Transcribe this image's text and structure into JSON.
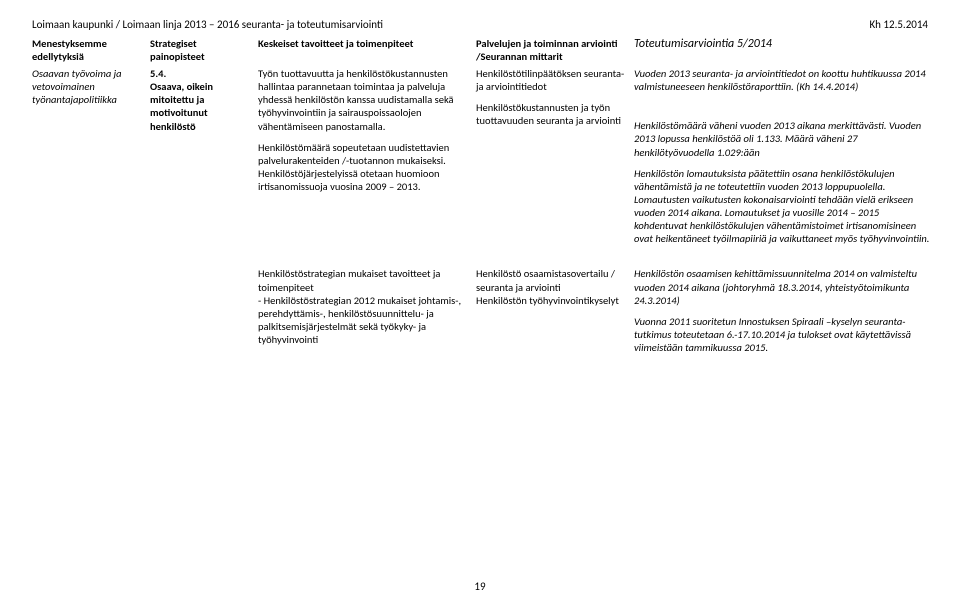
{
  "header": {
    "left": "Loimaan kaupunki / Loimaan linja 2013 – 2016 seuranta- ja toteutumisarviointi",
    "right": "Kh 12.5.2014"
  },
  "columns": {
    "h1": "Menestyksemme edellytyksiä",
    "h2": "Strategiset painopisteet",
    "h3": "Keskeiset tavoitteet ja toimenpiteet",
    "h4": "Palvelujen ja toiminnan arviointi /Seurannan mittarit",
    "h5": "Toteutumisarviointia 5/2014"
  },
  "r1": {
    "c1": "Osaavan työvoima ja vetovoimainen työnantajapolitiikka",
    "c2a": "5.4.",
    "c2b": "Osaava, oikein mitoitettu ja motivoitunut henkilöstö",
    "c3a": "Työn tuottavuutta ja henkilöstökustannusten hallintaa parannetaan toimintaa ja palveluja yhdessä henkilöstön kanssa uudistamalla sekä työhyvinvointiin ja sairauspoissaolojen vähentämiseen panostamalla.",
    "c3b": "Henkilöstömäärä sopeutetaan uudistettavien palvelurakenteiden /-tuotannon mukaiseksi. Henkilöstöjärjestelyissä otetaan huomioon irtisanomissuoja vuosina 2009 – 2013.",
    "c4a": "Henkilöstötilinpäätöksen seuranta- ja arviointitiedot",
    "c4b": "Henkilöstökustannusten ja työn tuottavuuden seuranta ja arviointi",
    "c5a": "Vuoden 2013 seuranta- ja arviointitiedot on koottu huhtikuussa 2014 valmistuneeseen henkilöstöraporttiin. (Kh 14.4.2014)",
    "c5b": "Henkilöstömäärä väheni vuoden 2013 aikana merkittävästi. Vuoden 2013 lopussa henkilöstöä oli 1.133. Määrä väheni 27 henkilötyövuodella 1.029:ään",
    "c5c": "Henkilöstön lomautuksista päätettiin osana henkilöstökulujen vähentämistä ja ne toteutettiin vuoden 2013 loppupuolella. Lomautusten vaikutusten kokonaisarviointi tehdään vielä erikseen vuoden 2014 aikana. Lomautukset ja vuosille 2014 – 2015 kohdentuvat henkilöstökulujen vähentämistoimet irtisanomisineen ovat heikentäneet työilmapiiriä ja vaikuttaneet myös työhyvinvointiin."
  },
  "r2": {
    "c3a": "Henkilöstöstrategian mukaiset tavoitteet ja toimenpiteet",
    "c3b": "- Henkilöstöstrategian 2012 mukaiset johtamis-, perehdyttämis-, henkilöstösuunnittelu- ja palkitsemisjärjestelmät sekä työkyky- ja työhyvinvointi",
    "c4a": "Henkilöstö osaamistasovertailu / seuranta ja arviointi",
    "c4b": "Henkilöstön työhyvinvointikyselyt",
    "c5a": "Henkilöstön osaamisen kehittämissuunnitelma 2014 on valmisteltu vuoden 2014 aikana (johtoryhmä 18.3.2014, yhteistyötoimikunta 24.3.2014)",
    "c5b": "Vuonna 2011 suoritetun Innostuksen Spiraali –kyselyn seuranta-tutkimus toteutetaan 6.-17.10.2014 ja tulokset ovat käytettävissä viimeistään tammikuussa 2015."
  },
  "pagenum": "19",
  "colors": {
    "text": "#000000",
    "bg": "#ffffff"
  }
}
